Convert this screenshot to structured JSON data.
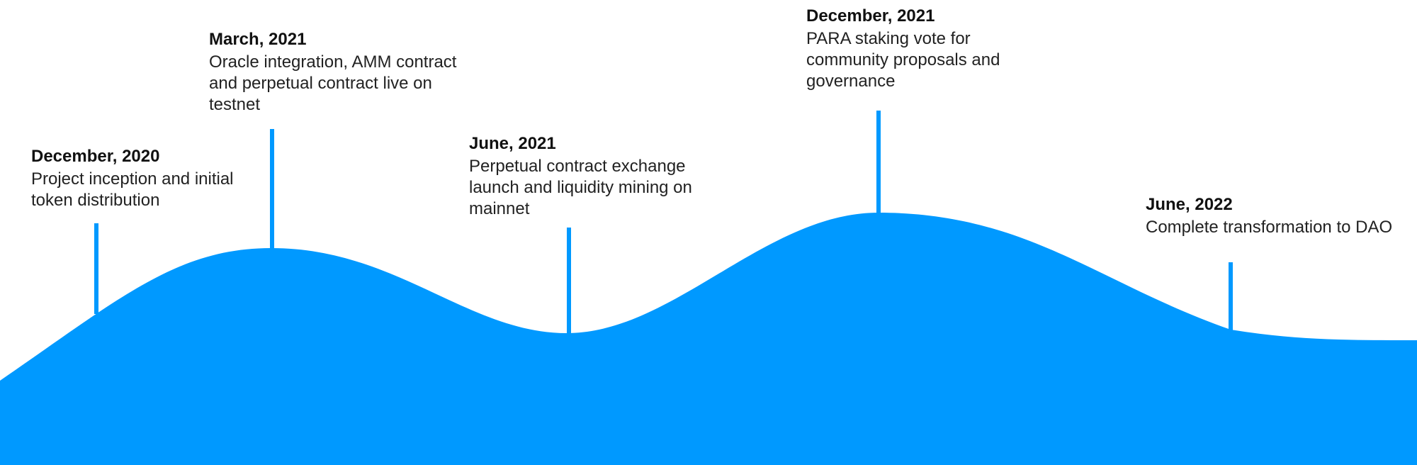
{
  "colors": {
    "wave": "#0099ff",
    "stem": "#0099ff",
    "date_text": "#111111",
    "desc_text": "#222222"
  },
  "milestones": [
    {
      "date": "December, 2020",
      "description": "Project inception and initial token distribution"
    },
    {
      "date": "March, 2021",
      "description": "Oracle integration, AMM contract and perpetual contract live on testnet"
    },
    {
      "date": "June, 2021",
      "description": "Perpetual contract exchange launch and liquidity mining on mainnet"
    },
    {
      "date": "December, 2021",
      "description": "PARA staking vote for community proposals and governance"
    },
    {
      "date": "June, 2022",
      "description": "Complete transformation to DAO"
    }
  ]
}
